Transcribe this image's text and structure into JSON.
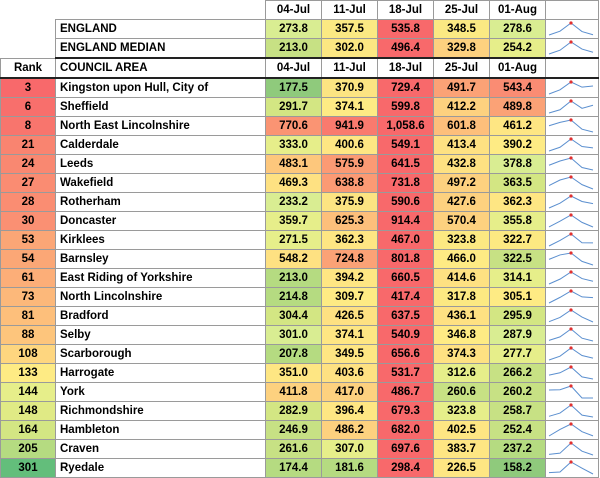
{
  "dates": [
    "04-Jul",
    "11-Jul",
    "18-Jul",
    "25-Jul",
    "01-Aug"
  ],
  "summary": [
    {
      "label": "ENGLAND",
      "values": [
        "273.8",
        "357.5",
        "535.8",
        "348.5",
        "278.6"
      ],
      "colors": [
        "#d9ed92",
        "#fbe983",
        "#f8696b",
        "#fbe983",
        "#d9ed92"
      ]
    },
    {
      "label": "ENGLAND MEDIAN",
      "values": [
        "213.0",
        "302.0",
        "496.4",
        "329.8",
        "254.2"
      ],
      "colors": [
        "#c7e184",
        "#fce782",
        "#f8696b",
        "#fdd17f",
        "#e6ee8a"
      ]
    }
  ],
  "headers": {
    "rank": "Rank",
    "area": "COUNCIL AREA"
  },
  "rows": [
    {
      "rank": "3",
      "name": "Kingston upon Hull, City of",
      "values": [
        "177.5",
        "370.9",
        "729.4",
        "491.7",
        "543.4"
      ],
      "colors": [
        "#8fca7c",
        "#fce482",
        "#f8696b",
        "#fba276",
        "#fa8c73"
      ],
      "rank_color": "#f8696b"
    },
    {
      "rank": "6",
      "name": "Sheffield",
      "values": [
        "291.7",
        "374.1",
        "599.8",
        "412.2",
        "489.8"
      ],
      "colors": [
        "#d3e683",
        "#feeb84",
        "#f8696b",
        "#fdd17f",
        "#fba276"
      ],
      "rank_color": "#f86f6c"
    },
    {
      "rank": "8",
      "name": "North East Lincolnshire",
      "values": [
        "770.6",
        "941.9",
        "1,058.6",
        "601.8",
        "461.2"
      ],
      "colors": [
        "#fa9473",
        "#f97a6e",
        "#f8696b",
        "#fdbf7b",
        "#fee683"
      ],
      "rank_color": "#f8756d"
    },
    {
      "rank": "21",
      "name": "Calderdale",
      "values": [
        "333.0",
        "400.6",
        "549.1",
        "413.4",
        "390.2"
      ],
      "colors": [
        "#e6ee8a",
        "#fee683",
        "#f8696b",
        "#fee182",
        "#feeb84"
      ],
      "rank_color": "#f98470"
    },
    {
      "rank": "24",
      "name": "Leeds",
      "values": [
        "483.1",
        "575.9",
        "641.5",
        "432.8",
        "378.8"
      ],
      "colors": [
        "#fdc77c",
        "#fb9a74",
        "#f8696b",
        "#fee182",
        "#d9ed92"
      ],
      "rank_color": "#f98871"
    },
    {
      "rank": "27",
      "name": "Wakefield",
      "values": [
        "469.3",
        "638.8",
        "731.8",
        "497.2",
        "363.5"
      ],
      "colors": [
        "#fee182",
        "#fb9a74",
        "#f8696b",
        "#fdd17f",
        "#d3e683"
      ],
      "rank_color": "#fa8c72"
    },
    {
      "rank": "28",
      "name": "Rotherham",
      "values": [
        "233.2",
        "375.9",
        "590.6",
        "427.6",
        "362.3"
      ],
      "colors": [
        "#d9ed92",
        "#fce482",
        "#f8696b",
        "#fdd17f",
        "#fee683"
      ],
      "rank_color": "#fa8d72"
    },
    {
      "rank": "30",
      "name": "Doncaster",
      "values": [
        "359.7",
        "625.3",
        "914.4",
        "570.4",
        "355.8"
      ],
      "colors": [
        "#e6ee8a",
        "#fdbf7b",
        "#f8696b",
        "#fdd17f",
        "#e6ee8a"
      ],
      "rank_color": "#fa9073"
    },
    {
      "rank": "53",
      "name": "Kirklees",
      "values": [
        "271.5",
        "362.3",
        "467.0",
        "323.8",
        "322.7"
      ],
      "colors": [
        "#e6ee8a",
        "#fee683",
        "#f8696b",
        "#fce982",
        "#fce982"
      ],
      "rank_color": "#fba676"
    },
    {
      "rank": "54",
      "name": "Barnsley",
      "values": [
        "548.2",
        "724.8",
        "801.8",
        "466.0",
        "322.5"
      ],
      "colors": [
        "#fee182",
        "#fba276",
        "#f8696b",
        "#feeb84",
        "#c7e184"
      ],
      "rank_color": "#fba776"
    },
    {
      "rank": "61",
      "name": "East Riding of Yorkshire",
      "values": [
        "213.0",
        "394.2",
        "660.5",
        "414.6",
        "314.1"
      ],
      "colors": [
        "#b5db81",
        "#fee683",
        "#f8696b",
        "#fee182",
        "#e6ee8a"
      ],
      "rank_color": "#fcae78"
    },
    {
      "rank": "73",
      "name": "North Lincolnshire",
      "values": [
        "214.8",
        "309.7",
        "417.4",
        "317.8",
        "305.1"
      ],
      "colors": [
        "#b5db81",
        "#feeb84",
        "#f8696b",
        "#fce982",
        "#feeb84"
      ],
      "rank_color": "#fcb87a"
    },
    {
      "rank": "81",
      "name": "Bradford",
      "values": [
        "304.4",
        "426.5",
        "637.5",
        "436.1",
        "295.9"
      ],
      "colors": [
        "#d3e683",
        "#fee182",
        "#f8696b",
        "#fee182",
        "#d3e683"
      ],
      "rank_color": "#fdbf7b"
    },
    {
      "rank": "88",
      "name": "Selby",
      "values": [
        "301.0",
        "374.1",
        "540.9",
        "346.8",
        "287.9"
      ],
      "colors": [
        "#d9ed92",
        "#fee683",
        "#f8696b",
        "#feeb84",
        "#d9ed92"
      ],
      "rank_color": "#fdc57c"
    },
    {
      "rank": "108",
      "name": "Scarborough",
      "values": [
        "207.8",
        "349.5",
        "656.6",
        "374.3",
        "277.7"
      ],
      "colors": [
        "#b5db81",
        "#fee683",
        "#f8696b",
        "#fee182",
        "#e6ee8a"
      ],
      "rank_color": "#fed67f"
    },
    {
      "rank": "133",
      "name": "Harrogate",
      "values": [
        "351.0",
        "403.6",
        "531.7",
        "312.6",
        "266.2"
      ],
      "colors": [
        "#fee683",
        "#fee182",
        "#f8696b",
        "#e6ee8a",
        "#c7e184"
      ],
      "rank_color": "#feeb84"
    },
    {
      "rank": "144",
      "name": "York",
      "values": [
        "411.8",
        "417.0",
        "486.7",
        "260.6",
        "260.2"
      ],
      "colors": [
        "#fdd17f",
        "#fdd17f",
        "#f8696b",
        "#c7e184",
        "#c7e184"
      ],
      "rank_color": "#e6ee8a"
    },
    {
      "rank": "148",
      "name": "Richmondshire",
      "values": [
        "282.9",
        "396.4",
        "679.3",
        "323.8",
        "258.7"
      ],
      "colors": [
        "#d3e683",
        "#fee683",
        "#f8696b",
        "#e6ee8a",
        "#c7e184"
      ],
      "rank_color": "#e0ea85"
    },
    {
      "rank": "164",
      "name": "Hambleton",
      "values": [
        "246.9",
        "486.2",
        "682.0",
        "402.5",
        "252.4"
      ],
      "colors": [
        "#c7e184",
        "#fdd17f",
        "#f8696b",
        "#fee683",
        "#c7e184"
      ],
      "rank_color": "#d3e683"
    },
    {
      "rank": "205",
      "name": "Craven",
      "values": [
        "261.6",
        "307.0",
        "697.6",
        "383.7",
        "237.2"
      ],
      "colors": [
        "#c7e184",
        "#e6ee8a",
        "#f8696b",
        "#fee683",
        "#b5db81"
      ],
      "rank_color": "#b5db81"
    },
    {
      "rank": "301",
      "name": "Ryedale",
      "values": [
        "174.4",
        "181.6",
        "298.4",
        "226.5",
        "158.2"
      ],
      "colors": [
        "#b5db81",
        "#b5db81",
        "#f8696b",
        "#fee683",
        "#8fca7c"
      ],
      "rank_color": "#63be7b"
    }
  ]
}
